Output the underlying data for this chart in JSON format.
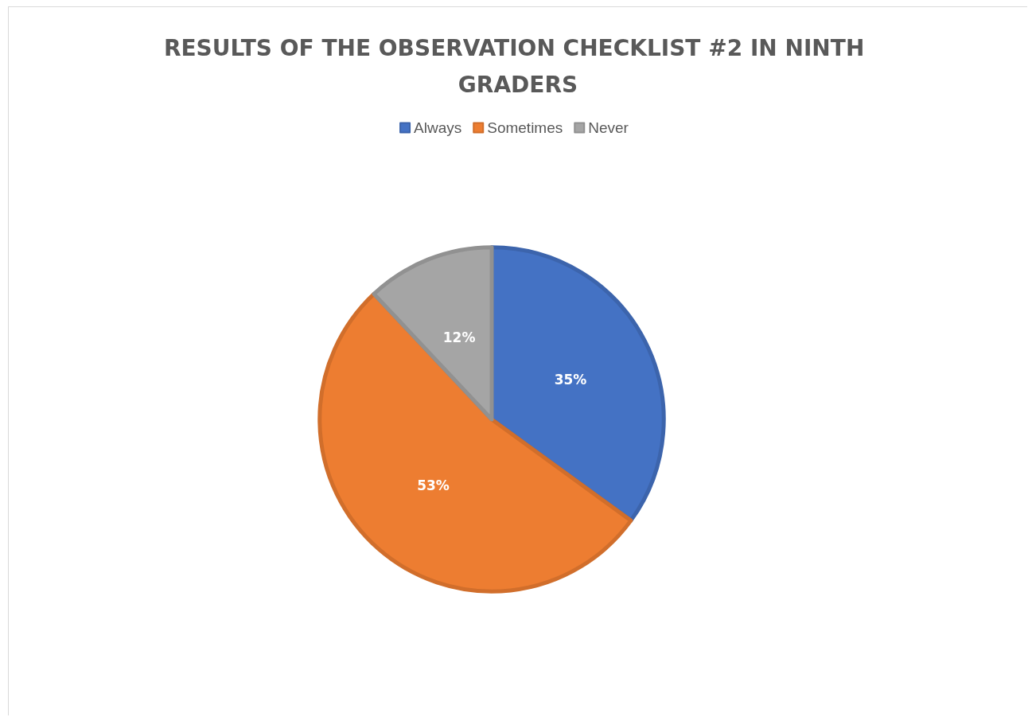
{
  "chart_data": {
    "type": "pie",
    "title": "RESULTS OF THE OBSERVATION CHECKLIST #2 IN NINTH GRADERS",
    "categories": [
      "Always",
      "Sometimes",
      "Never"
    ],
    "values": [
      35,
      53,
      12
    ],
    "colors": [
      "#4472c4",
      "#ed7d31",
      "#a5a5a5"
    ],
    "value_labels": [
      "35%",
      "53%",
      "12%"
    ],
    "legend": "top"
  }
}
